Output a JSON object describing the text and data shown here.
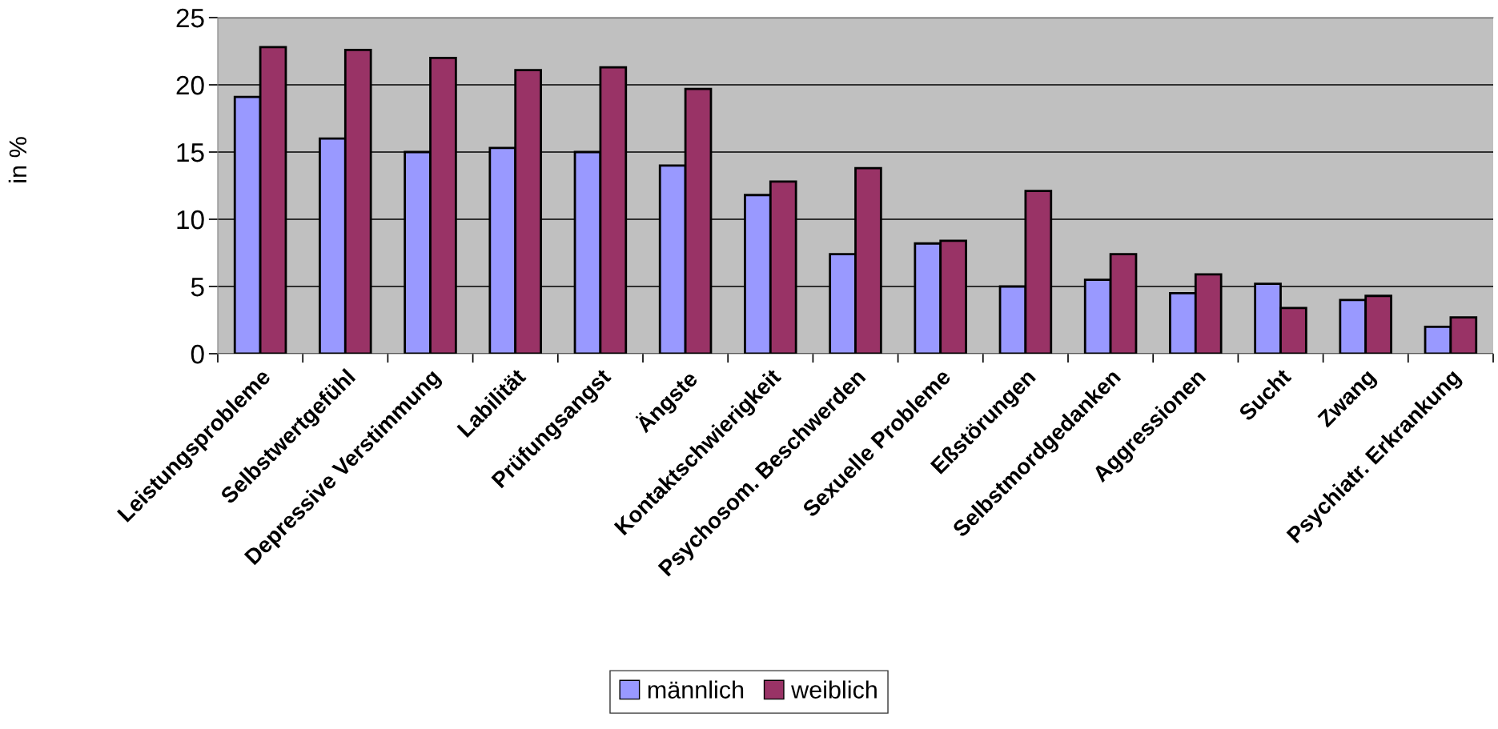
{
  "chart_data": {
    "type": "bar",
    "ylabel": "in %",
    "categories": [
      "Leistungsprobleme",
      "Selbstwertgefühl",
      "Depressive Verstimmung",
      "Labilität",
      "Prüfungsangst",
      "Ängste",
      "Kontaktschwierigkeit",
      "Psychosom. Beschwerden",
      "Sexuelle Probleme",
      "Eßstörungen",
      "Selbstmordgedanken",
      "Aggressionen",
      "Sucht",
      "Zwang",
      "Psychiatr. Erkrankung"
    ],
    "series": [
      {
        "name": "männlich",
        "color": "#9999ff",
        "values": [
          19.1,
          16.0,
          15.0,
          15.3,
          15.0,
          14.0,
          11.8,
          7.4,
          8.2,
          5.0,
          5.5,
          4.5,
          5.2,
          4.0,
          2.0
        ]
      },
      {
        "name": "weiblich",
        "color": "#993366",
        "values": [
          22.8,
          22.6,
          22.0,
          21.1,
          21.3,
          19.7,
          12.8,
          13.8,
          8.4,
          12.1,
          7.4,
          5.9,
          3.4,
          4.3,
          2.7
        ]
      }
    ],
    "ylim": [
      0,
      25
    ],
    "yticks": [
      0,
      5,
      10,
      15,
      20,
      25
    ],
    "grid": "y",
    "legend": "bottom"
  }
}
